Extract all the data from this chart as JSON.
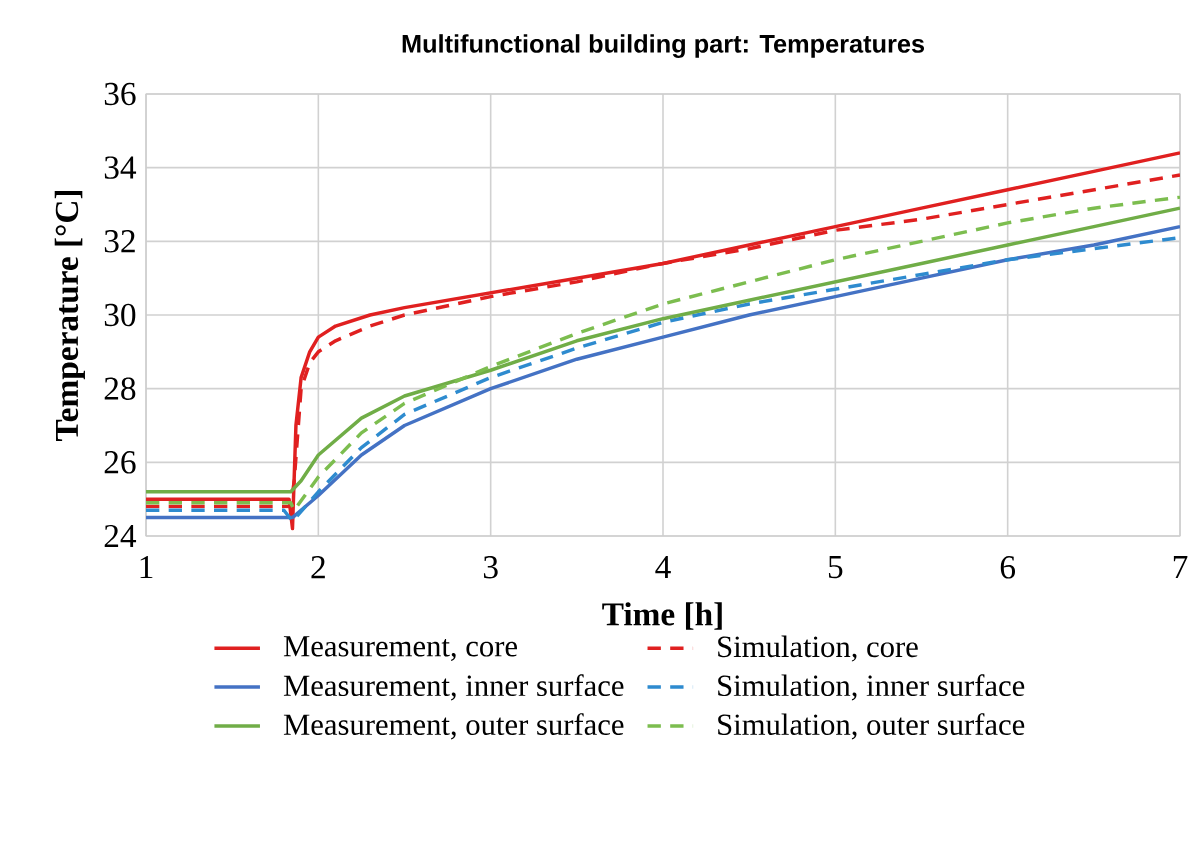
{
  "chart_data": {
    "type": "line",
    "title": "Multifunctional building part: Temperatures",
    "xlabel": "Time [h]",
    "ylabel": "Temperature [°C]",
    "xlim": [
      1,
      7
    ],
    "xticks": [
      1,
      2,
      3,
      4,
      5,
      6,
      7
    ],
    "ylim": [
      24,
      36
    ],
    "yticks": [
      24,
      26,
      28,
      30,
      32,
      34,
      36
    ],
    "grid": true,
    "legend": "bottom",
    "marker": "none",
    "series": [
      {
        "name": "Measurement, core",
        "color": "#e02020",
        "line_style": "solid",
        "x": [
          1,
          1.83,
          1.85,
          1.87,
          1.9,
          1.95,
          2.0,
          2.1,
          2.3,
          2.5,
          3,
          3.5,
          4,
          4.5,
          5,
          5.5,
          6,
          6.5,
          7
        ],
        "values": [
          25.0,
          25.0,
          24.2,
          27.0,
          28.3,
          29.0,
          29.4,
          29.7,
          30.0,
          30.2,
          30.6,
          31.0,
          31.4,
          31.9,
          32.4,
          32.9,
          33.4,
          33.9,
          34.4
        ]
      },
      {
        "name": "Simulation, core",
        "color": "#e02020",
        "line_style": "dashed",
        "x": [
          1,
          1.84,
          1.86,
          1.9,
          1.95,
          2.0,
          2.1,
          2.3,
          2.5,
          3,
          3.5,
          4,
          4.5,
          5,
          5.5,
          6,
          6.5,
          7
        ],
        "values": [
          24.8,
          24.8,
          25.5,
          28.0,
          28.7,
          29.0,
          29.3,
          29.7,
          30.0,
          30.5,
          30.9,
          31.4,
          31.8,
          32.3,
          32.6,
          33.0,
          33.4,
          33.8
        ]
      },
      {
        "name": "Measurement, inner surface",
        "color": "#4472c4",
        "line_style": "solid",
        "x": [
          1,
          1.85,
          2.0,
          2.25,
          2.5,
          3,
          3.5,
          4,
          4.5,
          5,
          5.5,
          6,
          6.5,
          7
        ],
        "values": [
          24.5,
          24.5,
          25.1,
          26.2,
          27.0,
          28.0,
          28.8,
          29.4,
          30.0,
          30.5,
          31.0,
          31.5,
          31.9,
          32.4
        ]
      },
      {
        "name": "Simulation, inner surface",
        "color": "#2e8bcf",
        "line_style": "dashed",
        "x": [
          1,
          1.8,
          1.85,
          2.0,
          2.25,
          2.5,
          3,
          3.5,
          4,
          4.5,
          5,
          5.5,
          6,
          6.5,
          7
        ],
        "values": [
          24.7,
          24.7,
          24.4,
          25.2,
          26.4,
          27.3,
          28.3,
          29.1,
          29.8,
          30.3,
          30.7,
          31.1,
          31.5,
          31.8,
          32.1
        ]
      },
      {
        "name": "Measurement, outer surface",
        "color": "#70ad47",
        "line_style": "solid",
        "x": [
          1,
          1.84,
          1.9,
          2.0,
          2.25,
          2.5,
          3,
          3.5,
          4,
          4.5,
          5,
          5.5,
          6,
          6.5,
          7
        ],
        "values": [
          25.2,
          25.2,
          25.5,
          26.2,
          27.2,
          27.8,
          28.5,
          29.3,
          29.9,
          30.4,
          30.9,
          31.4,
          31.9,
          32.4,
          32.9
        ]
      },
      {
        "name": "Simulation, outer surface",
        "color": "#7cbd4f",
        "line_style": "dashed",
        "x": [
          1,
          1.84,
          1.86,
          2.0,
          2.25,
          2.5,
          3,
          3.5,
          4,
          4.5,
          5,
          5.5,
          6,
          6.5,
          7
        ],
        "values": [
          24.9,
          24.9,
          24.7,
          25.6,
          26.8,
          27.6,
          28.6,
          29.5,
          30.3,
          30.9,
          31.5,
          32.0,
          32.5,
          32.9,
          33.2
        ]
      }
    ]
  }
}
